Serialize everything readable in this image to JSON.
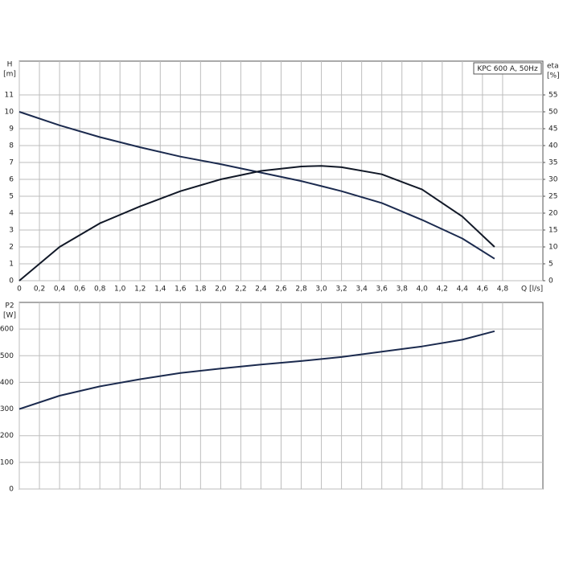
{
  "chart_data": [
    {
      "type": "line",
      "ylabel": "H",
      "yunit": "[m]",
      "y2label": "eta",
      "y2unit": "[%]",
      "xlabel": "Q [l/s]",
      "annotation": "KPC 600 A, 50Hz",
      "x": [
        0,
        0.4,
        0.8,
        1.2,
        1.6,
        2.0,
        2.4,
        2.8,
        3.0,
        3.2,
        3.6,
        4.0,
        4.4,
        4.72
      ],
      "series": [
        {
          "color": "#1b2a4e",
          "values": [
            10,
            9.2,
            8.5,
            7.9,
            7.35,
            6.9,
            6.4,
            5.9,
            5.6,
            5.3,
            4.6,
            3.6,
            2.5,
            1.3
          ]
        },
        {
          "color": "#111827",
          "axis": "y2",
          "values": [
            0,
            10,
            17,
            22,
            26.5,
            30,
            32.5,
            33.8,
            34,
            33.6,
            31.5,
            27,
            19,
            10
          ]
        }
      ],
      "xlim": [
        0,
        5.2
      ],
      "xticks": [
        0,
        {
          "value": 0.2,
          "label": "0,2"
        },
        {
          "value": 0.4,
          "label": "0,4"
        },
        {
          "value": 0.6,
          "label": "0,6"
        },
        {
          "value": 0.8,
          "label": "0,8"
        },
        {
          "value": 1.0,
          "label": "1,0"
        },
        {
          "value": 1.2,
          "label": "1,2"
        },
        {
          "value": 1.4,
          "label": "1,4"
        },
        {
          "value": 1.6,
          "label": "1,6"
        },
        {
          "value": 1.8,
          "label": "1,8"
        },
        {
          "value": 2.0,
          "label": "2,0"
        },
        {
          "value": 2.2,
          "label": "2,2"
        },
        {
          "value": 2.4,
          "label": "2,4"
        },
        {
          "value": 2.6,
          "label": "2,6"
        },
        {
          "value": 2.8,
          "label": "2,8"
        },
        {
          "value": 3.0,
          "label": "3,0"
        },
        {
          "value": 3.2,
          "label": "3,2"
        },
        {
          "value": 3.4,
          "label": "3,4"
        },
        {
          "value": 3.6,
          "label": "3,6"
        },
        {
          "value": 3.8,
          "label": "3,8"
        },
        {
          "value": 4.0,
          "label": "4,0"
        },
        {
          "value": 4.2,
          "label": "4,2"
        },
        {
          "value": 4.4,
          "label": "4,4"
        },
        {
          "value": 4.6,
          "label": "4,6"
        },
        {
          "value": 4.8,
          "label": "4,8"
        }
      ],
      "ylim": [
        0,
        13
      ],
      "yticks": [
        0,
        1,
        2,
        3,
        4,
        5,
        6,
        7,
        8,
        9,
        10,
        11
      ],
      "y2lim": [
        0,
        65
      ],
      "y2ticks": [
        0,
        5,
        10,
        15,
        20,
        25,
        30,
        35,
        40,
        45,
        50,
        55
      ],
      "grid": true
    },
    {
      "type": "line",
      "ylabel": "P2",
      "yunit": "[W]",
      "x": [
        0,
        0.4,
        0.8,
        1.2,
        1.6,
        2.0,
        2.4,
        2.8,
        3.2,
        3.6,
        4.0,
        4.4,
        4.72
      ],
      "series": [
        {
          "color": "#1b2a4e",
          "values": [
            300,
            350,
            385,
            412,
            435,
            452,
            467,
            480,
            495,
            515,
            535,
            560,
            592
          ]
        }
      ],
      "xlim": [
        0,
        5.2
      ],
      "ylim": [
        0,
        700
      ],
      "yticks": [
        0,
        100,
        200,
        300,
        400,
        500,
        600
      ],
      "grid": true
    }
  ]
}
